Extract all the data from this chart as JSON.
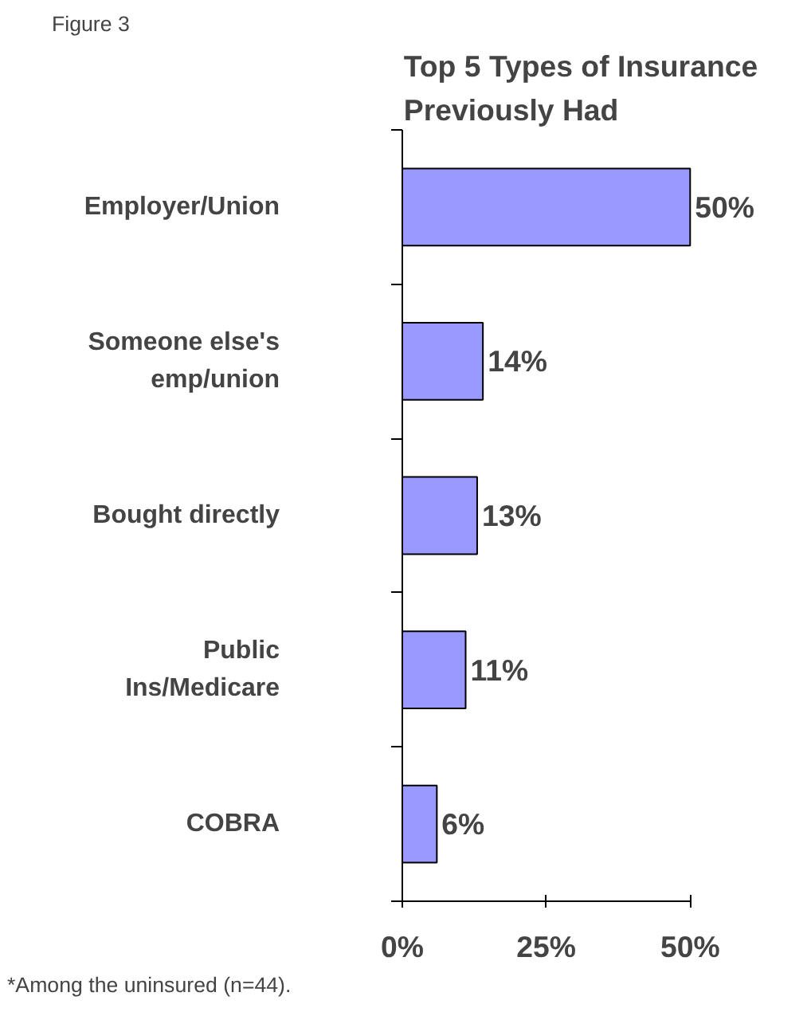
{
  "chart_data": {
    "type": "bar",
    "orientation": "horizontal",
    "title": "Top 5 Types of Insurance Previously Had",
    "categories": [
      "Employer/Union",
      "Someone else's emp/union",
      "Bought directly",
      "Public Ins/Medicare",
      "COBRA"
    ],
    "values": [
      50,
      14,
      13,
      11,
      6
    ],
    "color": "#9999ff",
    "value_labels": [
      "50%",
      "14%",
      "13%",
      "11%",
      "6%"
    ],
    "xlim": [
      0,
      50
    ],
    "xticks": [
      {
        "value": 0,
        "label": "0%"
      },
      {
        "value": 25,
        "label": "25%"
      },
      {
        "value": 50,
        "label": "50%"
      }
    ],
    "grid": false,
    "annotations": [
      "Figure 3",
      "*Among the uninsured (n=44)."
    ]
  }
}
